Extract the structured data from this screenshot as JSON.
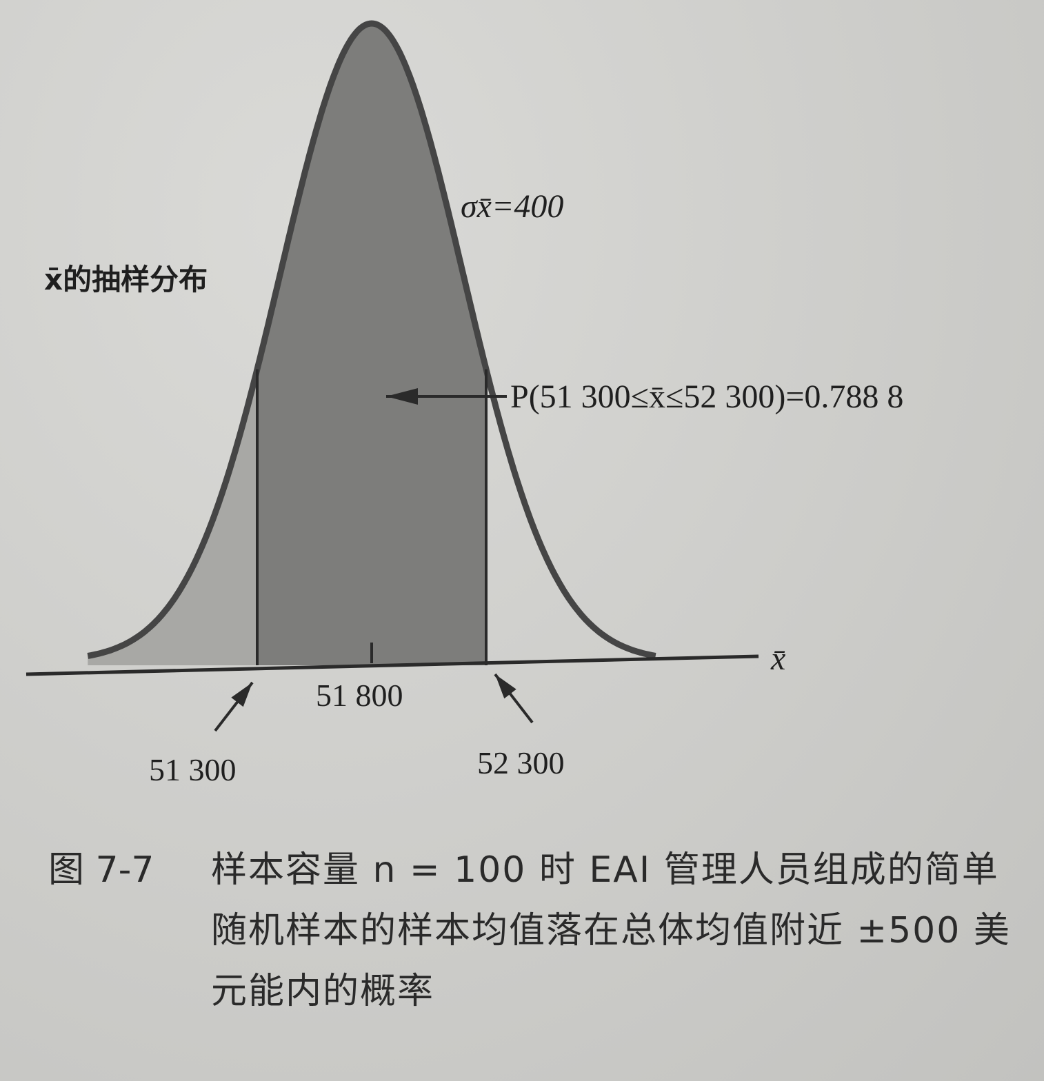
{
  "chart_data": {
    "type": "area",
    "distribution": "normal",
    "mean": 51800,
    "std_error": 400,
    "lower_bound": 51300,
    "upper_bound": 52300,
    "probability": 0.7888,
    "xlabel": "x̄",
    "curve_label": "x̄的抽样分布",
    "sigma_label": "σx̄=400",
    "probability_label": "P(51 300≤x̄≤52 300)=0.788 8",
    "tick_labels": {
      "mean": "51 800",
      "lower": "51 300",
      "upper": "52 300"
    },
    "colors": {
      "shaded_region": "#7d7d7b",
      "tail_region": "#a8a8a5",
      "curve": "#454545",
      "axis": "#2a2a2a"
    }
  },
  "caption": {
    "figure_number": "图 7-7",
    "text": "样本容量 n = 100 时 EAI 管理人员组成的简单随机样本的样本均值落在总体均值附近 ±500 美元能内的概率"
  }
}
